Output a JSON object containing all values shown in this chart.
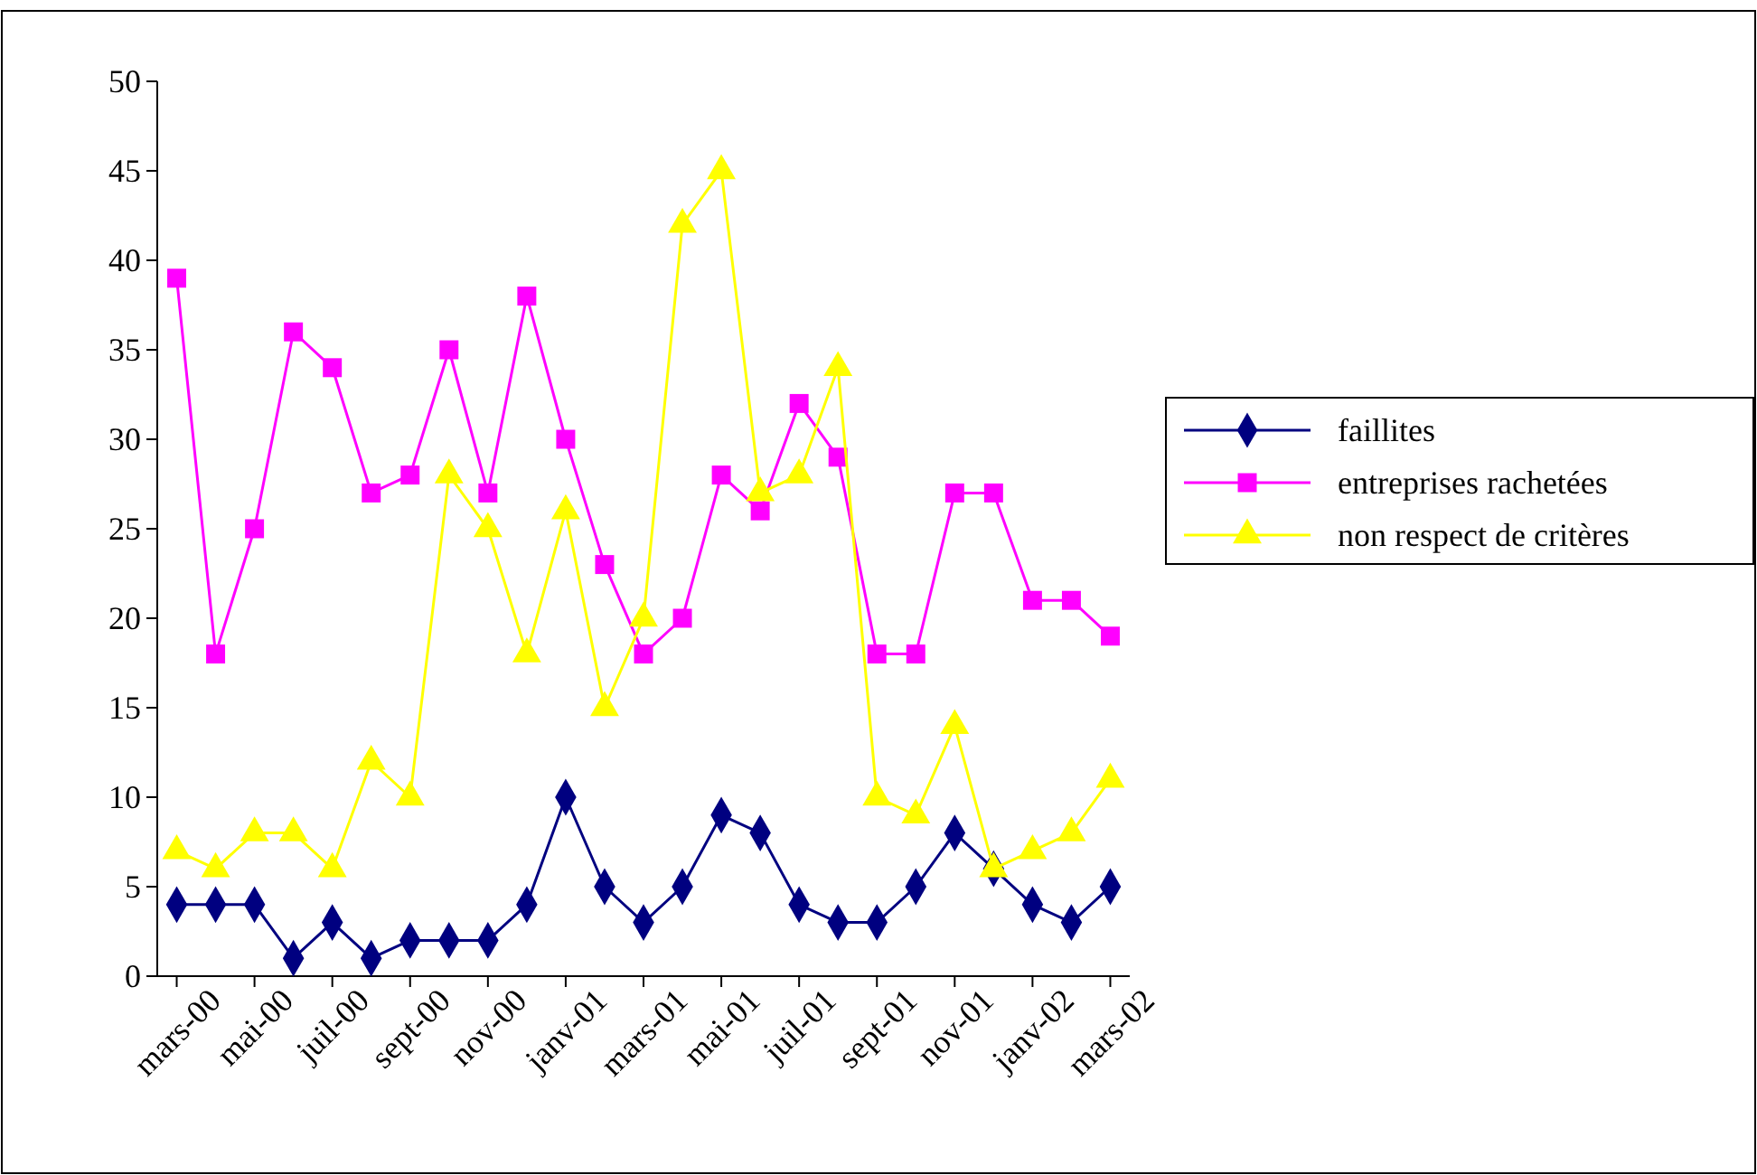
{
  "chart_data": {
    "type": "line",
    "categories": [
      "mars-00",
      null,
      "mai-00",
      null,
      "juil-00",
      null,
      "sept-00",
      null,
      "nov-00",
      null,
      "janv-01",
      null,
      "mars-01",
      null,
      "mai-01",
      null,
      "juil-01",
      null,
      "sept-01",
      null,
      "nov-01",
      null,
      "janv-02",
      null,
      "mars-02"
    ],
    "series": [
      {
        "name": "faillites",
        "color": "#000080",
        "marker": "diamond",
        "values": [
          4,
          4,
          4,
          1,
          3,
          1,
          2,
          2,
          2,
          4,
          10,
          5,
          3,
          5,
          9,
          8,
          4,
          3,
          3,
          5,
          8,
          6,
          4,
          3,
          5
        ]
      },
      {
        "name": "entreprises rachetées",
        "color": "#ff00ff",
        "marker": "square",
        "values": [
          39,
          18,
          25,
          36,
          34,
          27,
          28,
          35,
          27,
          38,
          30,
          23,
          18,
          20,
          28,
          26,
          32,
          29,
          18,
          18,
          27,
          27,
          21,
          21,
          19
        ]
      },
      {
        "name": "non respect de critères",
        "color": "#ffff00",
        "marker": "triangle",
        "values": [
          7,
          6,
          8,
          8,
          6,
          12,
          10,
          28,
          25,
          18,
          26,
          15,
          20,
          42,
          45,
          27,
          28,
          34,
          10,
          9,
          14,
          6,
          7,
          8,
          11
        ]
      }
    ],
    "ylim": [
      0,
      50
    ],
    "yticks": [
      0,
      5,
      10,
      15,
      20,
      25,
      30,
      35,
      40,
      45,
      50
    ],
    "grid": false,
    "legend": "right"
  }
}
